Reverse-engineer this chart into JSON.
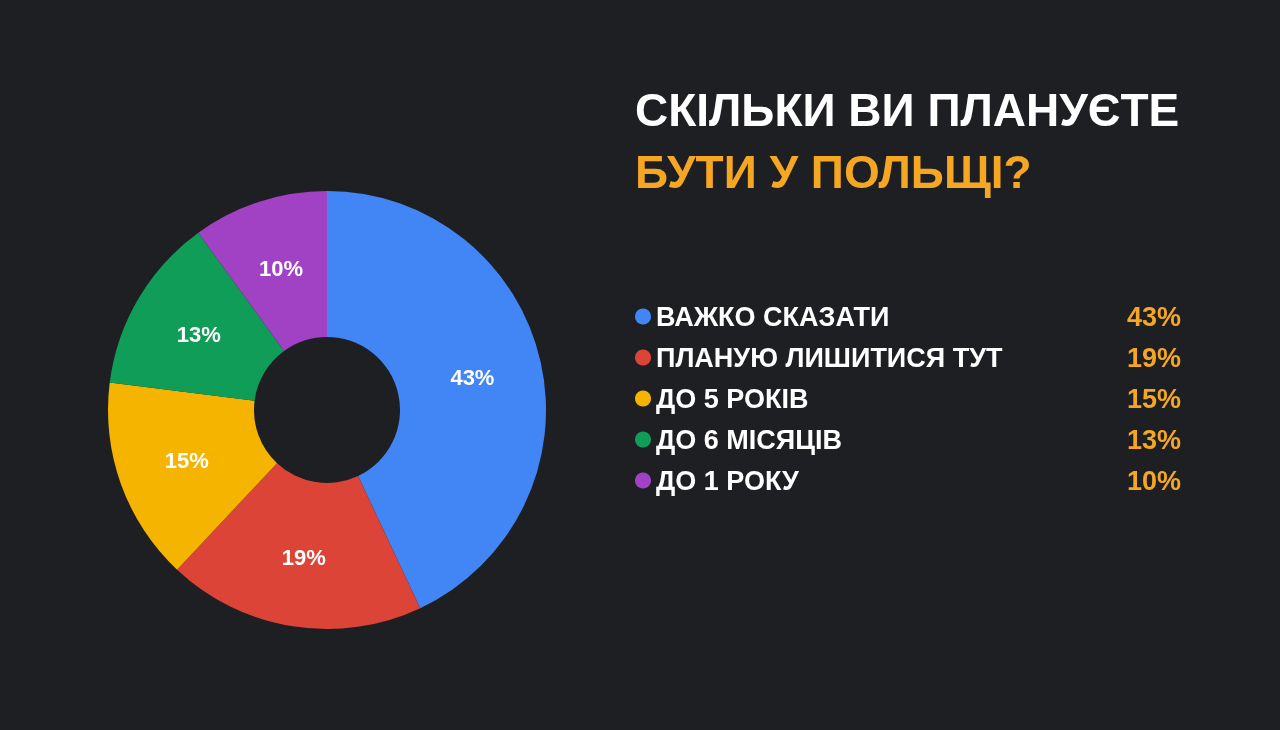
{
  "chart_data": {
    "type": "donut",
    "title": "СКІЛЬКИ ВИ ПЛАНУЄТЕ",
    "subtitle": "БУТИ У ПОЛЬЩІ?",
    "categories": [
      "ВАЖКО СКАЗАТИ",
      "ПЛАНУЮ ЛИШИТИСЯ ТУТ",
      "ДО 5 РОКІВ",
      "ДО 6 МІСЯЦІВ",
      "ДО 1 РОКУ"
    ],
    "values": [
      43,
      19,
      15,
      13,
      10
    ],
    "value_labels": [
      "43%",
      "19%",
      "15%",
      "13%",
      "10%"
    ],
    "colors": [
      "#4285f4",
      "#db4437",
      "#f4b400",
      "#0f9d58",
      "#a142c4"
    ],
    "legend": "right"
  }
}
